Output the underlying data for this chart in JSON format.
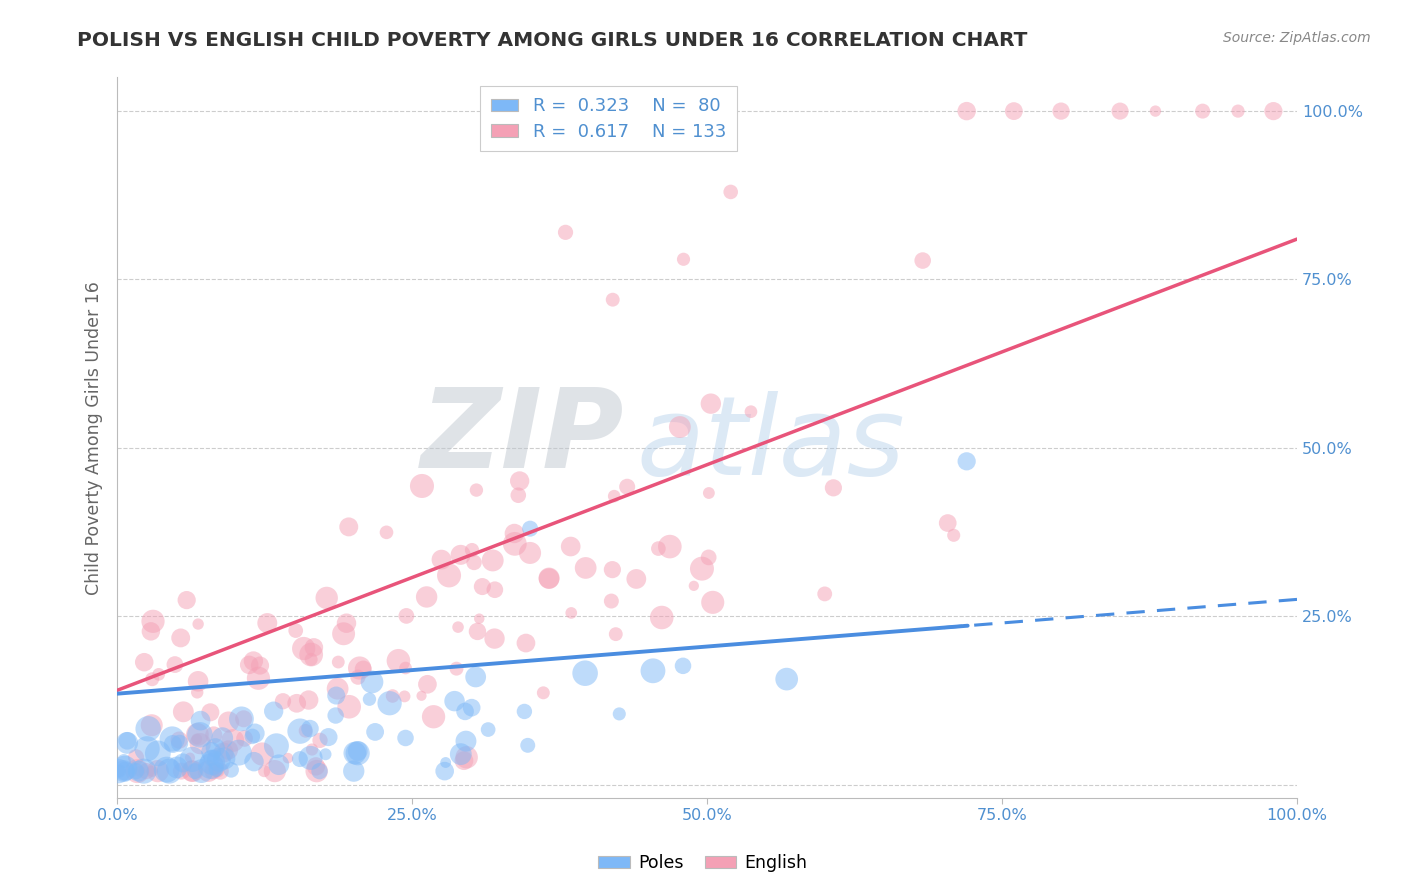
{
  "title": "POLISH VS ENGLISH CHILD POVERTY AMONG GIRLS UNDER 16 CORRELATION CHART",
  "source": "Source: ZipAtlas.com",
  "ylabel": "Child Poverty Among Girls Under 16",
  "xlim": [
    0.0,
    1.0
  ],
  "ylim": [
    -0.02,
    1.05
  ],
  "xticks": [
    0.0,
    0.25,
    0.5,
    0.75,
    1.0
  ],
  "yticks": [
    0.0,
    0.25,
    0.5,
    0.75,
    1.0
  ],
  "xticklabels": [
    "0.0%",
    "25.0%",
    "50.0%",
    "75.0%",
    "100.0%"
  ],
  "yticklabels": [
    "",
    "25.0%",
    "50.0%",
    "75.0%",
    "100.0%"
  ],
  "poles_color": "#7eb8f7",
  "english_color": "#f4a0b5",
  "poles_line_color": "#4a8de0",
  "english_line_color": "#e8547a",
  "poles_R": 0.323,
  "poles_N": 80,
  "english_R": 0.617,
  "english_N": 133,
  "watermark_zip": "ZIP",
  "watermark_atlas": "atlas",
  "background_color": "#ffffff",
  "grid_color": "#c8c8c8",
  "tick_color": "#5090d0",
  "title_color": "#333333",
  "ylabel_color": "#666666"
}
